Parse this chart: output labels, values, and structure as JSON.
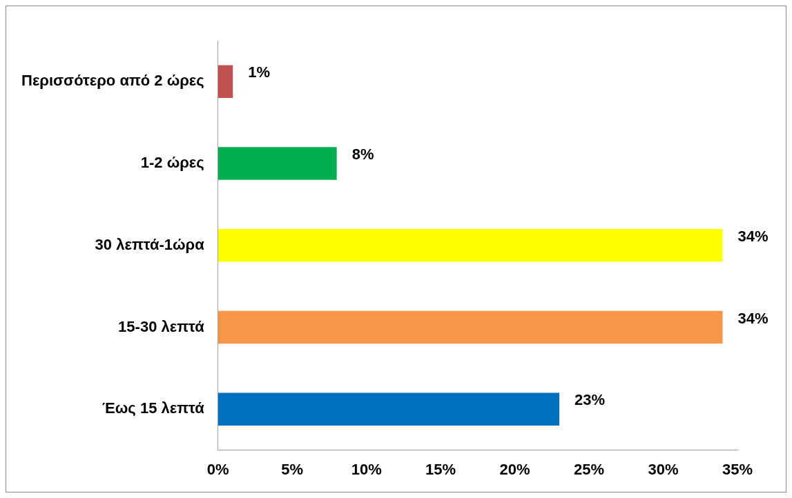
{
  "chart_data": {
    "type": "bar",
    "orientation": "horizontal",
    "categories": [
      "Περισσότερο από 2 ώρες",
      "1-2 ώρες",
      "30 λεπτά-1ώρα",
      "15-30 λεπτά",
      "Έως 15 λεπτά"
    ],
    "values": [
      1,
      8,
      34,
      34,
      23
    ],
    "value_labels": [
      "1%",
      "8%",
      "34%",
      "34%",
      "23%"
    ],
    "colors": [
      "#c0504d",
      "#00b050",
      "#ffff00",
      "#f79646",
      "#0070c0"
    ],
    "xlim": [
      0,
      35
    ],
    "xticks": [
      {
        "value": 0,
        "label": "0%"
      },
      {
        "value": 5,
        "label": "5%"
      },
      {
        "value": 10,
        "label": "10%"
      },
      {
        "value": 15,
        "label": "15%"
      },
      {
        "value": 20,
        "label": "20%"
      },
      {
        "value": 25,
        "label": "25%"
      },
      {
        "value": 30,
        "label": "30%"
      },
      {
        "value": 35,
        "label": "35%"
      }
    ],
    "grid": false
  }
}
